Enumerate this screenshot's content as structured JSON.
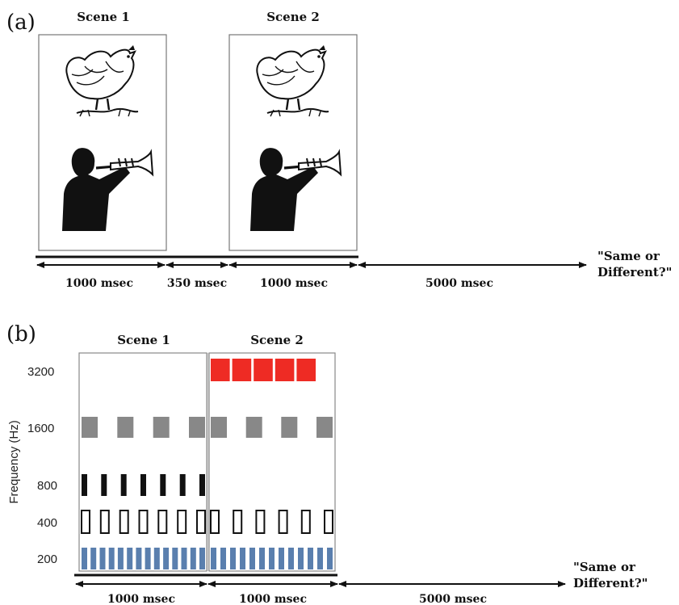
{
  "panel_a": {
    "label": "(a)",
    "scene1_title": "Scene 1",
    "scene2_title": "Scene 2",
    "scene_images": [
      "chicken-icon",
      "trumpet-player-icon"
    ],
    "durations": [
      "1000 msec",
      "350 msec",
      "1000 msec",
      "5000 msec"
    ],
    "prompt_line1": "\"Same or",
    "prompt_line2": "Different?\""
  },
  "panel_b": {
    "label": "(b)",
    "scene1_title": "Scene 1",
    "scene2_title": "Scene 2",
    "y_axis_label": "Frequency (Hz)",
    "frequencies": [
      "3200",
      "1600",
      "800",
      "400",
      "200"
    ],
    "durations": [
      "1000 msec",
      "1000 msec",
      "5000 msec"
    ],
    "prompt_line1": "\"Same or",
    "prompt_line2": "Different?\"",
    "tone_colors": {
      "3200": "#ee2b24",
      "1600": "#888888",
      "800": "#111111",
      "400": "#ffffff",
      "200": "#5a7fae"
    },
    "tone_streams": {
      "scene1": {
        "3200": 0,
        "1600": 4,
        "800": 7,
        "400": 7,
        "200": 14
      },
      "scene2": {
        "3200": 5,
        "1600": 4,
        "800": 0,
        "400": 6,
        "200": 13
      }
    }
  }
}
